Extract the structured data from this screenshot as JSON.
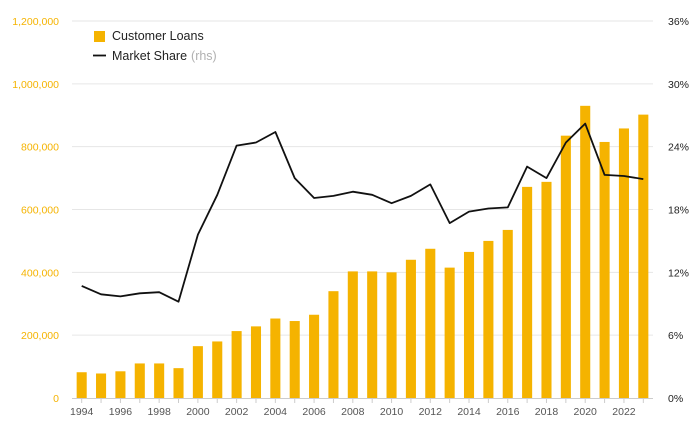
{
  "chart_data": {
    "type": "bar+line",
    "title": "",
    "xlabel": "",
    "ylabel": "",
    "categories": [
      1994,
      1995,
      1996,
      1997,
      1998,
      1999,
      2000,
      2001,
      2002,
      2003,
      2004,
      2005,
      2006,
      2007,
      2008,
      2009,
      2010,
      2011,
      2012,
      2013,
      2014,
      2015,
      2016,
      2017,
      2018,
      2019,
      2020,
      2021,
      2022,
      2023
    ],
    "x_tick_labels": [
      "1994",
      "1996",
      "1998",
      "2000",
      "2002",
      "2004",
      "2006",
      "2008",
      "2010",
      "2012",
      "2014",
      "2016",
      "2018",
      "2020",
      "2022"
    ],
    "series": [
      {
        "name": "Customer Loans",
        "type": "bar",
        "axis": "left",
        "color": "#F5B300",
        "values": [
          82000,
          78000,
          85000,
          110000,
          110000,
          95000,
          165000,
          180000,
          213000,
          228000,
          253000,
          245000,
          265000,
          340000,
          403000,
          403000,
          400000,
          440000,
          475000,
          415000,
          465000,
          500000,
          535000,
          672000,
          688000,
          835000,
          930000,
          815000,
          858000,
          902000
        ]
      },
      {
        "name": "Market Share",
        "note": "(rhs)",
        "type": "line",
        "axis": "right",
        "color": "#111111",
        "values": [
          10.7,
          9.9,
          9.7,
          10.0,
          10.1,
          9.2,
          15.6,
          19.4,
          24.1,
          24.4,
          25.4,
          21.0,
          19.1,
          19.3,
          19.7,
          19.4,
          18.6,
          19.3,
          20.4,
          16.7,
          17.8,
          18.1,
          18.2,
          22.1,
          21.0,
          24.4,
          26.2,
          21.3,
          21.2,
          20.9
        ]
      }
    ],
    "y_left": {
      "range": [
        0,
        1200000
      ],
      "ticks": [
        0,
        200000,
        400000,
        600000,
        800000,
        1000000,
        1200000
      ],
      "tick_labels": [
        "0",
        "200,000",
        "400,000",
        "600,000",
        "800,000",
        "1,000,000",
        "1,200,000"
      ],
      "color": "#F5B300"
    },
    "y_right": {
      "range": [
        0,
        36
      ],
      "ticks": [
        0,
        6,
        12,
        18,
        24,
        30,
        36
      ],
      "tick_labels": [
        "0%",
        "6%",
        "12%",
        "18%",
        "24%",
        "30%",
        "36%"
      ]
    },
    "grid": true,
    "legend_position": "top-left"
  }
}
